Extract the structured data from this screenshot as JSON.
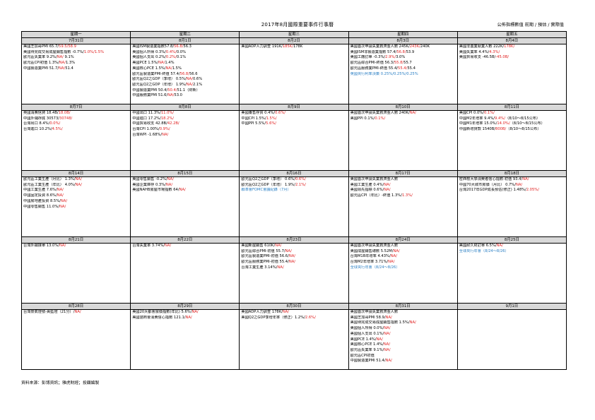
{
  "title": "2017年8月國際重要事件行事曆",
  "legend": "公佈指標數值 前期 / 預估 / 實際值",
  "weekdays": [
    "星期一",
    "星期二",
    "星期三",
    "星期四",
    "星期五"
  ],
  "weeks": [
    {
      "days": [
        {
          "date": "7月31日",
          "events": [
            {
              "text": "美國芝加哥PMI 65.7/",
              "red": "59.5/58.9"
            },
            {
              "text": "美國待完成交易成屋銷售指數 -0.7%/",
              "red": "1.0%/1.5%"
            },
            {
              "text": "歐元區失業率 9.2%/",
              "red": "NA/",
              "tail": " 9.1%"
            },
            {
              "text": "歐元區CPI初值 1.3%/",
              "red": "NA/",
              "tail": "1.3%"
            },
            {
              "text": "中國製造業PMI 51.7/",
              "red": "NA/",
              "tail": "51.4"
            }
          ]
        },
        {
          "date": "8月1日",
          "events": [
            {
              "text": "美國ISM製造業指數57.8/",
              "red": "56.8/",
              "tail": "56.3"
            },
            {
              "text": "美國個人所得 0.3%/",
              "red": "0.4%/",
              "tail": "0.0%"
            },
            {
              "text": "美國個人支出 0.2%/",
              "red": "0.2%/",
              "tail": "0.1%"
            },
            {
              "text": "美國PCE 1.5%/",
              "red": "NA/",
              "tail": "1.4%"
            },
            {
              "text": "美國核心PCE 1.5%/",
              "red": "NA/",
              "tail": "1.5%"
            },
            {
              "text": "歐元區製造業PMI-終值 57.4/",
              "red": "56.8/",
              "tail": "56.6"
            },
            {
              "text": "歐元區Q2之GDP（季增） 0.5%/",
              "red": "NA/",
              "tail": "0.6%"
            },
            {
              "text": "歐元區Q2之GDP（年增） 1.9%/",
              "red": "NA/",
              "tail": "2.1%"
            },
            {
              "text": "中國製造業PMI 50.4/",
              "red": "50.4/",
              "tail": "51.1（財新）"
            },
            {
              "text": "中國服務業PMI 51.6/",
              "red": "NA/",
              "tail": "53.0"
            }
          ]
        },
        {
          "date": "8月2日",
          "events": [
            {
              "text": "美國ADP人力調查 191K/",
              "red": "185K/",
              "tail": "178K"
            }
          ]
        },
        {
          "date": "8月3日",
          "events": [
            {
              "text": "美國首次申請失業救濟金人數 245K/",
              "red": "243K/",
              "tail": "240K"
            },
            {
              "text": "美國ISM非製造業指數 57.4/",
              "red": "56.8/",
              "tail": "53.9"
            },
            {
              "text": "美國工廠訂單 -0.3%/",
              "red": "2.9%/",
              "tail": "3.0%"
            },
            {
              "text": "歐元區綜合PMI-終值 56.3/",
              "red": "55.8/",
              "tail": "55.7"
            },
            {
              "text": "歐元區服務業PMI-終值 55.4/",
              "red": "55.4/",
              "tail": "55.4"
            },
            {
              "text": "英國央行利率決策 0.25%/",
              "red": "0.25%/",
              "tail": "0.25%",
              "blue": true
            }
          ]
        },
        {
          "date": "8月4日",
          "events": [
            {
              "text": "美國非農業就業人數 222K/",
              "red": "178K/"
            },
            {
              "text": "美國失業率 4.4%/",
              "red": "4.3%/"
            },
            {
              "text": "美國貿易收支 -46.5B/",
              "red": "-45.0B/"
            }
          ]
        }
      ]
    },
    {
      "days": [
        {
          "date": "8月7日",
          "events": [
            {
              "text": "英國消費信貸 18.4B/",
              "red": "18.0B/"
            },
            {
              "text": "中國外儲存底 30573/",
              "red": "30748/"
            },
            {
              "text": "台灣出口 8.4%/",
              "red": "0.0%/"
            },
            {
              "text": "台灣進口 10.2%/",
              "red": "4.5%/"
            }
          ]
        },
        {
          "date": "8月8日",
          "events": [
            {
              "text": "中國出口 11.3%/",
              "red": "11.0%/"
            },
            {
              "text": "中國進口 17.2%/",
              "red": "18.2%/"
            },
            {
              "text": "中國貿易收支 42.8B/",
              "red": "42.2B/"
            },
            {
              "text": "台灣CPI 1.00%/",
              "red": "0.9%/"
            },
            {
              "text": "台灣WPI -1.68%/",
              "red": "NA/"
            }
          ]
        },
        {
          "date": "8月9日",
          "events": [
            {
              "text": "美國躉售存貨 0.4%/",
              "red": "0.6%/"
            },
            {
              "text": "中國CPI 1.5%/",
              "red": "1.5%/"
            },
            {
              "text": "中國PPI 5.5%/",
              "red": "5.6%/"
            }
          ]
        },
        {
          "date": "8月10日",
          "events": [
            {
              "text": "美國首次申請失業救濟金人數 240K/",
              "red": "NA/"
            },
            {
              "text": "美國PPI 0.1%/",
              "red": "0.1%/"
            }
          ]
        },
        {
          "date": "8月11日",
          "events": [
            {
              "text": "美國CPI 0.0%/",
              "red": "0.1%/"
            },
            {
              "text": "中國M2年增率 9.4%/",
              "red": "9.4%/",
              "tail": "（8/10～8/15公布）"
            },
            {
              "text": "中國M1年增率 15.0%/",
              "red": "14.0%/",
              "tail": "（8/10～8/15公布）"
            },
            {
              "text": "中國新增貸款 1540B/",
              "red": "800B/",
              "tail": "（8/10～8/15公布）"
            }
          ]
        }
      ]
    },
    {
      "days": [
        {
          "date": "8月14日",
          "events": [
            {
              "text": "歐元區工業生產（月比） 1.3%/",
              "red": "NA/"
            },
            {
              "text": "歐元區工業生產（年比） 4.0%/",
              "red": "NA/"
            },
            {
              "text": "中國工業生產 7.6%/",
              "red": "NA/"
            },
            {
              "text": "中國固定投資 8.6%/",
              "red": "NA/"
            },
            {
              "text": "中國房地產投資 8.5%/",
              "red": "NA/"
            },
            {
              "text": "中國零售銷售 11.0%/",
              "red": "NA/"
            }
          ]
        },
        {
          "date": "8月15日",
          "events": [
            {
              "text": "美國零售銷售 -0.2%/",
              "red": "NA/"
            },
            {
              "text": "美國企業庫存 0.3%/",
              "red": "NA/"
            },
            {
              "text": "美國NAHB房屋市場指數 64/",
              "red": "NA/"
            }
          ]
        },
        {
          "date": "8月16日",
          "events": [
            {
              "text": "歐元區Q2之GDP（季增） 0.6%/",
              "red": "0.6%/"
            },
            {
              "text": "歐元區Q2之GDP（年增） 1.9%/",
              "red": "2.1%/"
            },
            {
              "text": "聯準會FOMC會議紀錄（7月）",
              "blue": true
            }
          ]
        },
        {
          "date": "8月17日",
          "events": [
            {
              "text": "美國首次申請失業救濟金人數"
            },
            {
              "text": "美國工業生產 0.4%/",
              "red": "NA/"
            },
            {
              "text": "美國領先指標 0.6%/",
              "red": "NA/"
            },
            {
              "text": "歐元區CPI（年比）-終值 1.3%/",
              "red": "1.3%/"
            }
          ]
        },
        {
          "date": "8月18日",
          "events": [
            {
              "text": "密西根大學消費者信心指數-初值 93.4/",
              "red": "NA/"
            },
            {
              "text": "中國70大城市房價（月比） 0.7%/",
              "red": "NA/"
            },
            {
              "text": "台灣2017年GDP成長預估(修正) 1.48%/",
              "red": "2.05%/"
            }
          ]
        }
      ]
    },
    {
      "days": [
        {
          "date": "8月21日",
          "events": [
            {
              "text": "台灣外銷接單 13.0%/",
              "red": "NA/"
            }
          ]
        },
        {
          "date": "8月22日",
          "events": [
            {
              "text": "台灣失業率 3.74%/",
              "red": "NA/"
            }
          ]
        },
        {
          "date": "8月23日",
          "events": [
            {
              "text": "美國新屋銷售 610K/",
              "red": "NA/"
            },
            {
              "text": "歐元區綜合PMI-初值 55.7/",
              "red": "NA/"
            },
            {
              "text": "歐元區製造業PMI-初值 56.6/",
              "red": "NA/"
            },
            {
              "text": "歐元區服務業PMI-初值 55.4/",
              "red": "NA/"
            },
            {
              "text": "台灣工業生產 3.14%/",
              "red": "NA/"
            }
          ]
        },
        {
          "date": "8月24日",
          "events": [
            {
              "text": "美國首次申請失業救濟金人數"
            },
            {
              "text": "美國成屋銷售總數 5.52M/",
              "red": "NA/"
            },
            {
              "text": "台灣M1B年增率 4.43%/",
              "red": "NA/"
            },
            {
              "text": "台灣M2年增率 3.71%/",
              "red": "NA/"
            },
            {
              "text": "全球央行年會（8/24～8/26）",
              "blue": true
            }
          ]
        },
        {
          "date": "8月25日",
          "events": [
            {
              "text": "美國耐久財訂單 6.5%/",
              "red": "NA/"
            },
            {
              "text": "全球央行年會（8/24～8/26）",
              "blue": true
            }
          ]
        }
      ]
    },
    {
      "days": [
        {
          "date": "8月28日",
          "events": [
            {
              "text": "台灣景氣燈號-黃藍燈（21分）/",
              "red": "NA/"
            }
          ]
        },
        {
          "date": "8月29日",
          "events": [
            {
              "text": "美國20大都會房價指數(年比) 5.6%/",
              "red": "NA/"
            },
            {
              "text": "美國諮商會消費信心指數 121.1/",
              "red": "NA/"
            }
          ]
        },
        {
          "date": "8月30日",
          "events": [
            {
              "text": "美國ADP人力調查 178K/",
              "red": "NA/"
            },
            {
              "text": "美國Q2之GDP季增年率（修正）1.2%/",
              "red": "2.6%/"
            }
          ]
        },
        {
          "date": "8月31日",
          "events": [
            {
              "text": "美國首次申請失業救濟金人數"
            },
            {
              "text": "美國芝加哥PMI 58.9/",
              "red": "NA/"
            },
            {
              "text": "美國待完成交易成屋銷售指數 1.5%/",
              "red": "NA/"
            },
            {
              "text": "美國個人所得 0.0%/",
              "red": "NA/"
            },
            {
              "text": "美國個人支出 0.1%/",
              "red": "NA/"
            },
            {
              "text": "美國PCE 1.4%/",
              "red": "NA/"
            },
            {
              "text": "美國核心PCE 1.4%/",
              "red": "NA/"
            },
            {
              "text": "歐元區失業率 9.1%/",
              "red": "NA/"
            },
            {
              "text": "歐元區CPI初值"
            },
            {
              "text": "中國製造業PMI 51.4/",
              "red": "NA/"
            }
          ]
        },
        {
          "date": "9月1日",
          "events": []
        }
      ]
    }
  ],
  "source": "資料來源：彭博資訊；雅虎財經；投顧編製"
}
